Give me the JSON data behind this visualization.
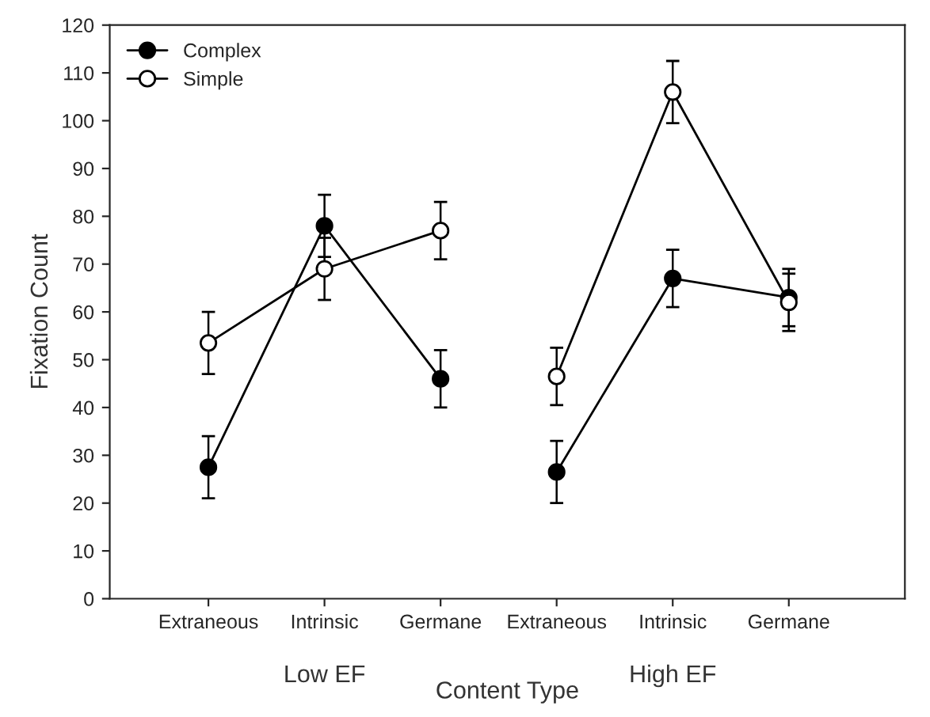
{
  "chart_data": {
    "type": "line",
    "xlabel": "Content Type",
    "ylabel": "Fixation Count",
    "categories": [
      "Extraneous",
      "Intrinsic",
      "Germane",
      "Extraneous",
      "Intrinsic",
      "Germane"
    ],
    "series": [
      {
        "name": "Complex",
        "color": "#000000",
        "values": [
          27.5,
          78,
          46,
          null,
          null,
          null
        ],
        "errors": [
          6.5,
          6.5,
          6,
          null,
          null,
          null
        ]
      },
      {
        "name": "Simple",
        "color": "#ffffff",
        "values": [
          53.5,
          69,
          77,
          null,
          null,
          null
        ],
        "errors": [
          6.5,
          6.5,
          6,
          null,
          null,
          null
        ]
      },
      {
        "color": "#000000",
        "values": [
          null,
          null,
          null,
          26.5,
          67,
          63
        ],
        "errors": [
          null,
          null,
          null,
          6.5,
          6,
          6
        ]
      },
      {
        "color": "#ffffff",
        "values": [
          null,
          null,
          null,
          46.5,
          106,
          62
        ],
        "errors": [
          null,
          null,
          null,
          6,
          6.5,
          6
        ]
      }
    ],
    "annotations": [
      "Low EF",
      "High EF"
    ],
    "ylim": [
      0,
      120
    ],
    "yticks": [
      0,
      10,
      20,
      30,
      40,
      50,
      60,
      70,
      80,
      90,
      100,
      110,
      120
    ],
    "marker": "circle",
    "line_style": "solid",
    "legend": "top left",
    "grid": false
  }
}
